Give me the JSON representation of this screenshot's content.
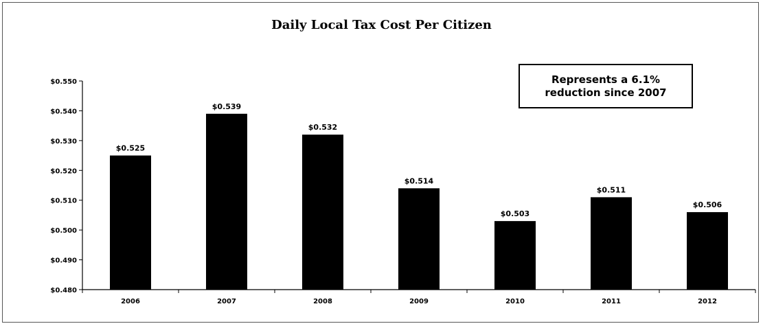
{
  "chart_data": {
    "type": "bar",
    "title": "Daily Local Tax Cost Per Citizen",
    "categories": [
      "2006",
      "2007",
      "2008",
      "2009",
      "2010",
      "2011",
      "2012"
    ],
    "values": [
      0.525,
      0.539,
      0.532,
      0.514,
      0.503,
      0.511,
      0.506
    ],
    "data_labels": [
      "$0.525",
      "$0.539",
      "$0.532",
      "$0.514",
      "$0.503",
      "$0.511",
      "$0.506"
    ],
    "ylim": [
      0.48,
      0.55
    ],
    "yticks": [
      0.48,
      0.49,
      0.5,
      0.51,
      0.52,
      0.53,
      0.54,
      0.55
    ],
    "ytick_labels": [
      "$0.480",
      "$0.490",
      "$0.500",
      "$0.510",
      "$0.520",
      "$0.530",
      "$0.540",
      "$0.550"
    ],
    "xlabel": "",
    "ylabel": "",
    "grid": false,
    "legend": "none",
    "bar_color": "#000000",
    "annotation": "Represents a 6.1%\nreduction since 2007"
  }
}
